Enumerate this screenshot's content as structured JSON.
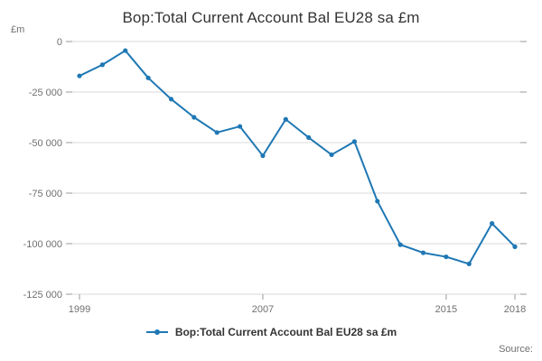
{
  "title": "Bop:Total Current Account Bal EU28 sa £m",
  "y_unit_label": "£m",
  "source_label": "Source:",
  "legend": {
    "label": "Bop:Total Current Account Bal EU28 sa £m"
  },
  "colors": {
    "line": "#1f78b4",
    "grid": "#d9d9d9",
    "tick": "#999999",
    "axis_text": "#707070",
    "title_text": "#333333",
    "legend_text": "#333333",
    "source_text": "#707070"
  },
  "chart_data": {
    "type": "line",
    "title": "Bop:Total Current Account Bal EU28 sa £m",
    "xlabel": "",
    "ylabel": "£m",
    "x": [
      1999,
      2000,
      2001,
      2002,
      2003,
      2004,
      2005,
      2006,
      2007,
      2008,
      2009,
      2010,
      2011,
      2012,
      2013,
      2014,
      2015,
      2016,
      2017,
      2018
    ],
    "series": [
      {
        "name": "Bop:Total Current Account Bal EU28 sa £m",
        "values": [
          -17000,
          -11500,
          -4500,
          -18000,
          -28500,
          -37500,
          -45000,
          -42000,
          -56500,
          -38500,
          -47500,
          -56000,
          -49500,
          -79000,
          -100500,
          -104500,
          -106500,
          -110000,
          -90000,
          -101500
        ]
      }
    ],
    "ylim": [
      -125000,
      0
    ],
    "yticks": [
      0,
      -25000,
      -50000,
      -75000,
      -100000,
      -125000
    ],
    "ytick_labels": [
      "0",
      "-25 000",
      "-50 000",
      "-75 000",
      "-100 000",
      "-125 000"
    ],
    "xticks": [
      1999,
      2007,
      2015,
      2018
    ],
    "grid": true,
    "marker": "circle",
    "legend_position": "bottom"
  }
}
